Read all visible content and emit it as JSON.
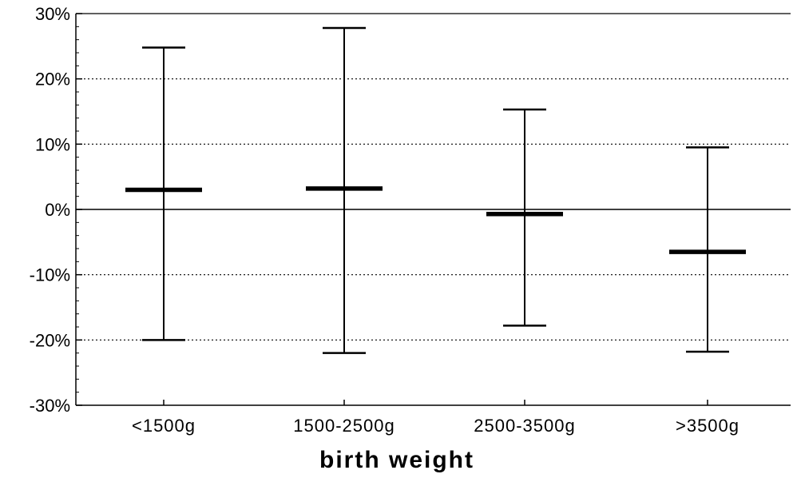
{
  "chart_data": {
    "type": "error_bar",
    "title": "",
    "xlabel": "birth weight",
    "ylabel": "",
    "ylim": [
      -30,
      30
    ],
    "y_unit": "%",
    "yticks": [
      30,
      20,
      10,
      0,
      -10,
      -20,
      -30
    ],
    "ytick_labels": [
      "30%",
      "20%",
      "10%",
      "0%",
      "-10%",
      "-20%",
      "-30%"
    ],
    "grid": "horizontal dotted at ±10% and ±20%, solid at 0%",
    "categories": [
      "<1500g",
      "1500-2500g",
      "2500-3500g",
      ">3500g"
    ],
    "series": [
      {
        "center": [
          3,
          3.2,
          -0.7,
          -6.5
        ],
        "lower": [
          -20,
          -22,
          -17.8,
          -21.8
        ],
        "upper": [
          24.8,
          27.8,
          15.3,
          9.5
        ]
      }
    ]
  }
}
